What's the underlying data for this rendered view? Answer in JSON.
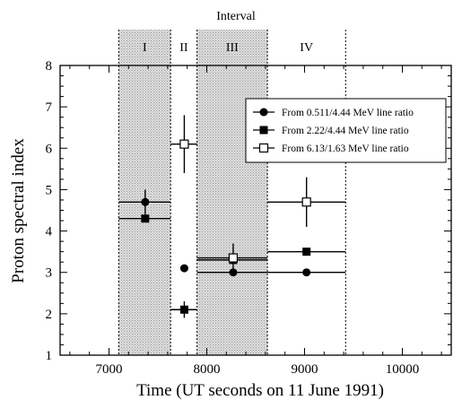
{
  "chart_data": {
    "type": "scatter",
    "title": "",
    "xlabel": "Time (UT seconds on 11 June 1991)",
    "ylabel": "Proton spectral index",
    "xlim": [
      6500,
      10500
    ],
    "ylim": [
      1,
      8
    ],
    "x_ticks": [
      7000,
      8000,
      9000,
      10000
    ],
    "y_ticks": [
      1,
      2,
      3,
      4,
      5,
      6,
      7,
      8
    ],
    "grid": false,
    "legend_position": "upper-right",
    "interval_label": "Interval",
    "intervals": [
      {
        "label": "I",
        "start": 7100,
        "end": 7630,
        "shaded": true
      },
      {
        "label": "II",
        "start": 7630,
        "end": 7900,
        "shaded": false
      },
      {
        "label": "III",
        "start": 7900,
        "end": 8620,
        "shaded": true
      },
      {
        "label": "IV",
        "start": 8620,
        "end": 9420,
        "shaded": false
      }
    ],
    "series": [
      {
        "name": "From 0.511/4.44 MeV line ratio",
        "marker": "filled-circle",
        "points": [
          {
            "x": 7370,
            "y": 4.7,
            "xerr": [
              7100,
              7630
            ],
            "yerr": [
              4.4,
              5.0
            ]
          },
          {
            "x": 7770,
            "y": 3.1,
            "xerr": null,
            "yerr": null
          },
          {
            "x": 8270,
            "y": 3.0,
            "xerr": [
              7900,
              8620
            ],
            "yerr": null
          },
          {
            "x": 9020,
            "y": 3.0,
            "xerr": [
              8620,
              9420
            ],
            "yerr": null
          }
        ]
      },
      {
        "name": "From 2.22/4.44 MeV line ratio",
        "marker": "filled-square",
        "points": [
          {
            "x": 7370,
            "y": 4.3,
            "xerr": [
              7100,
              7630
            ],
            "yerr": null
          },
          {
            "x": 7770,
            "y": 2.1,
            "xerr": [
              7630,
              7900
            ],
            "yerr": [
              1.9,
              2.3
            ]
          },
          {
            "x": 8270,
            "y": 3.3,
            "xerr": [
              7900,
              8620
            ],
            "yerr": null
          },
          {
            "x": 9020,
            "y": 3.5,
            "xerr": [
              8620,
              9420
            ],
            "yerr": null
          }
        ]
      },
      {
        "name": "From 6.13/1.63 MeV line ratio",
        "marker": "open-square",
        "points": [
          {
            "x": 7770,
            "y": 6.1,
            "xerr": [
              7630,
              7900
            ],
            "yerr": [
              5.4,
              6.8
            ]
          },
          {
            "x": 8270,
            "y": 3.35,
            "xerr": [
              7900,
              8620
            ],
            "yerr": [
              3.0,
              3.7
            ]
          },
          {
            "x": 9020,
            "y": 4.7,
            "xerr": [
              8620,
              9420
            ],
            "yerr": [
              4.1,
              5.3
            ]
          }
        ]
      }
    ]
  }
}
